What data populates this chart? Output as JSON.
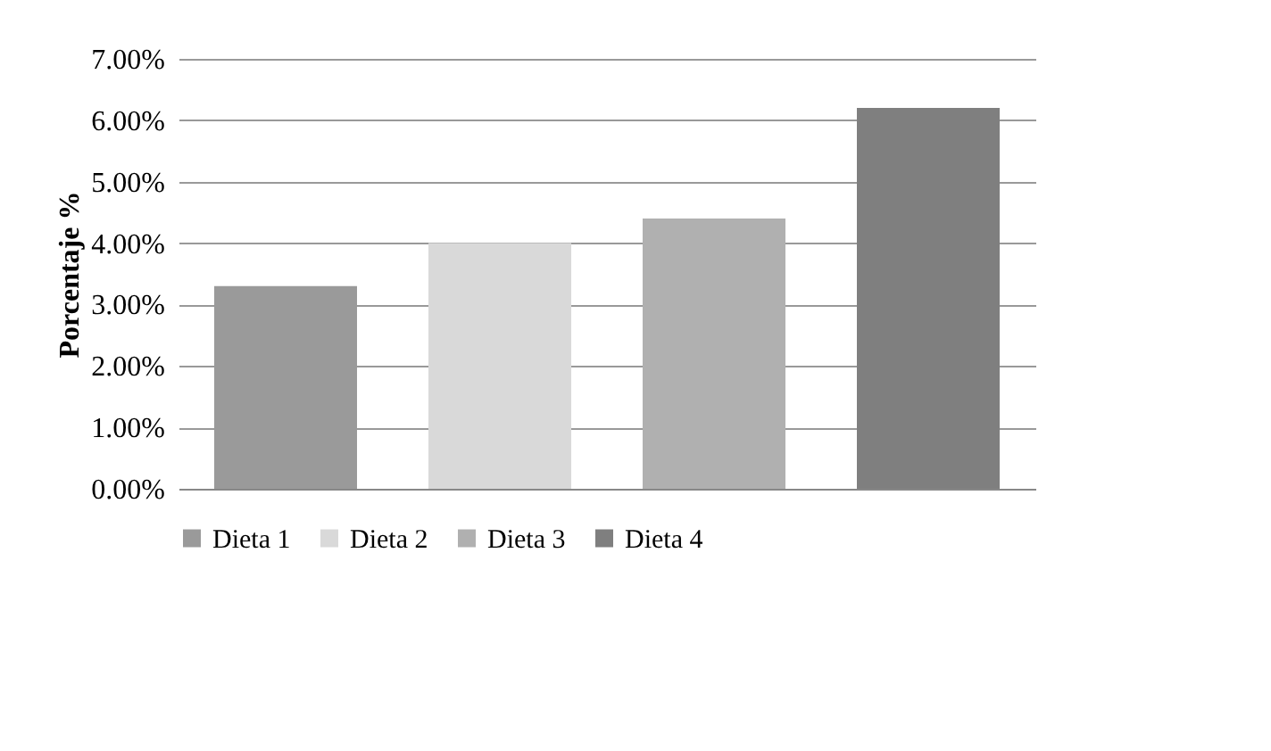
{
  "chart_data": {
    "type": "bar",
    "ylabel": "Porcentaje %",
    "categories": [
      null,
      null,
      null,
      null
    ],
    "series": [
      {
        "name": "Dieta 1",
        "color": "#9a9a9a",
        "values": [
          3.3,
          null,
          null,
          null
        ]
      },
      {
        "name": "Dieta 2",
        "color": "#d9d9d9",
        "values": [
          null,
          4.0,
          null,
          null
        ]
      },
      {
        "name": "Dieta 3",
        "color": "#b0b0b0",
        "values": [
          null,
          null,
          4.4,
          null
        ]
      },
      {
        "name": "Dieta 4",
        "color": "#7f7f7f",
        "values": [
          null,
          null,
          null,
          6.2
        ]
      }
    ],
    "ylim": [
      0,
      7
    ],
    "yticks": [
      {
        "value": 0,
        "label": "0.00%"
      },
      {
        "value": 1,
        "label": "1.00%"
      },
      {
        "value": 2,
        "label": "2.00%"
      },
      {
        "value": 3,
        "label": "3.00%"
      },
      {
        "value": 4,
        "label": "4.00%"
      },
      {
        "value": 5,
        "label": "5.00%"
      },
      {
        "value": 6,
        "label": "6.00%"
      },
      {
        "value": 7,
        "label": "7.00%"
      }
    ],
    "grid": "y",
    "legend": "bottom"
  }
}
